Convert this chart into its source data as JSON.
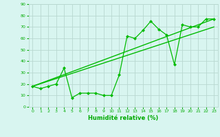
{
  "title": "",
  "xlabel": "Humidité relative (%)",
  "ylabel": "",
  "bg_color": "#d8f5f0",
  "grid_color": "#b8d8d0",
  "line_color": "#00bb00",
  "text_color": "#00aa00",
  "ylim": [
    0,
    90
  ],
  "xlim": [
    -0.5,
    23.5
  ],
  "yticks": [
    0,
    10,
    20,
    30,
    40,
    50,
    60,
    70,
    80,
    90
  ],
  "xticks": [
    0,
    1,
    2,
    3,
    4,
    5,
    6,
    7,
    8,
    9,
    10,
    11,
    12,
    13,
    14,
    15,
    16,
    17,
    18,
    19,
    20,
    21,
    22,
    23
  ],
  "series": [
    {
      "x": [
        0,
        1,
        2,
        3,
        4,
        5,
        6,
        7,
        8,
        9,
        10,
        11,
        12,
        13,
        14,
        15,
        16,
        17,
        18,
        19,
        20,
        21,
        22,
        23
      ],
      "y": [
        18,
        16,
        18,
        20,
        34,
        8,
        12,
        12,
        12,
        10,
        10,
        28,
        62,
        60,
        67,
        75,
        68,
        63,
        37,
        72,
        70,
        70,
        77,
        77
      ]
    },
    {
      "x": [
        0,
        23
      ],
      "y": [
        18,
        77
      ]
    },
    {
      "x": [
        0,
        23
      ],
      "y": [
        18,
        70
      ]
    }
  ]
}
